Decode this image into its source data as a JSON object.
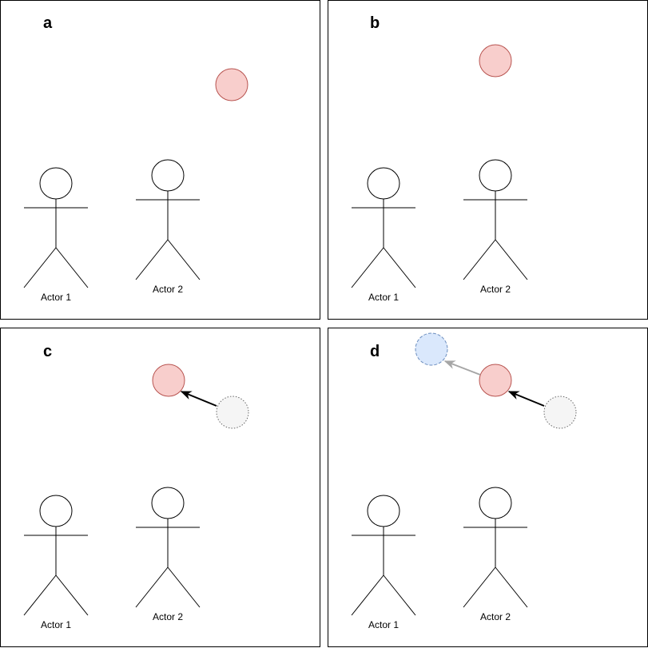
{
  "colors": {
    "frame": "#000000",
    "ball_current_fill": "#f8cecc",
    "ball_current_stroke": "#b85450",
    "ball_previous_fill": "#f5f5f5",
    "ball_previous_stroke": "#666666",
    "ball_next_fill": "#dae8fc",
    "ball_next_stroke": "#6c8ebf",
    "arrow_past": "#000000",
    "arrow_future": "#a6a6a6"
  },
  "panels": [
    {
      "letter": "a",
      "actors": [
        {
          "label": "Actor 1"
        },
        {
          "label": "Actor 2"
        }
      ],
      "balls": [
        "current"
      ],
      "arrows": []
    },
    {
      "letter": "b",
      "actors": [
        {
          "label": "Actor 1"
        },
        {
          "label": "Actor 2"
        }
      ],
      "balls": [
        "current"
      ],
      "arrows": []
    },
    {
      "letter": "c",
      "actors": [
        {
          "label": "Actor 1"
        },
        {
          "label": "Actor 2"
        }
      ],
      "balls": [
        "previous",
        "current"
      ],
      "arrows": [
        "previous-to-current"
      ]
    },
    {
      "letter": "d",
      "actors": [
        {
          "label": "Actor 1"
        },
        {
          "label": "Actor 2"
        }
      ],
      "balls": [
        "previous",
        "current",
        "next"
      ],
      "arrows": [
        "previous-to-current",
        "current-to-next"
      ]
    }
  ]
}
